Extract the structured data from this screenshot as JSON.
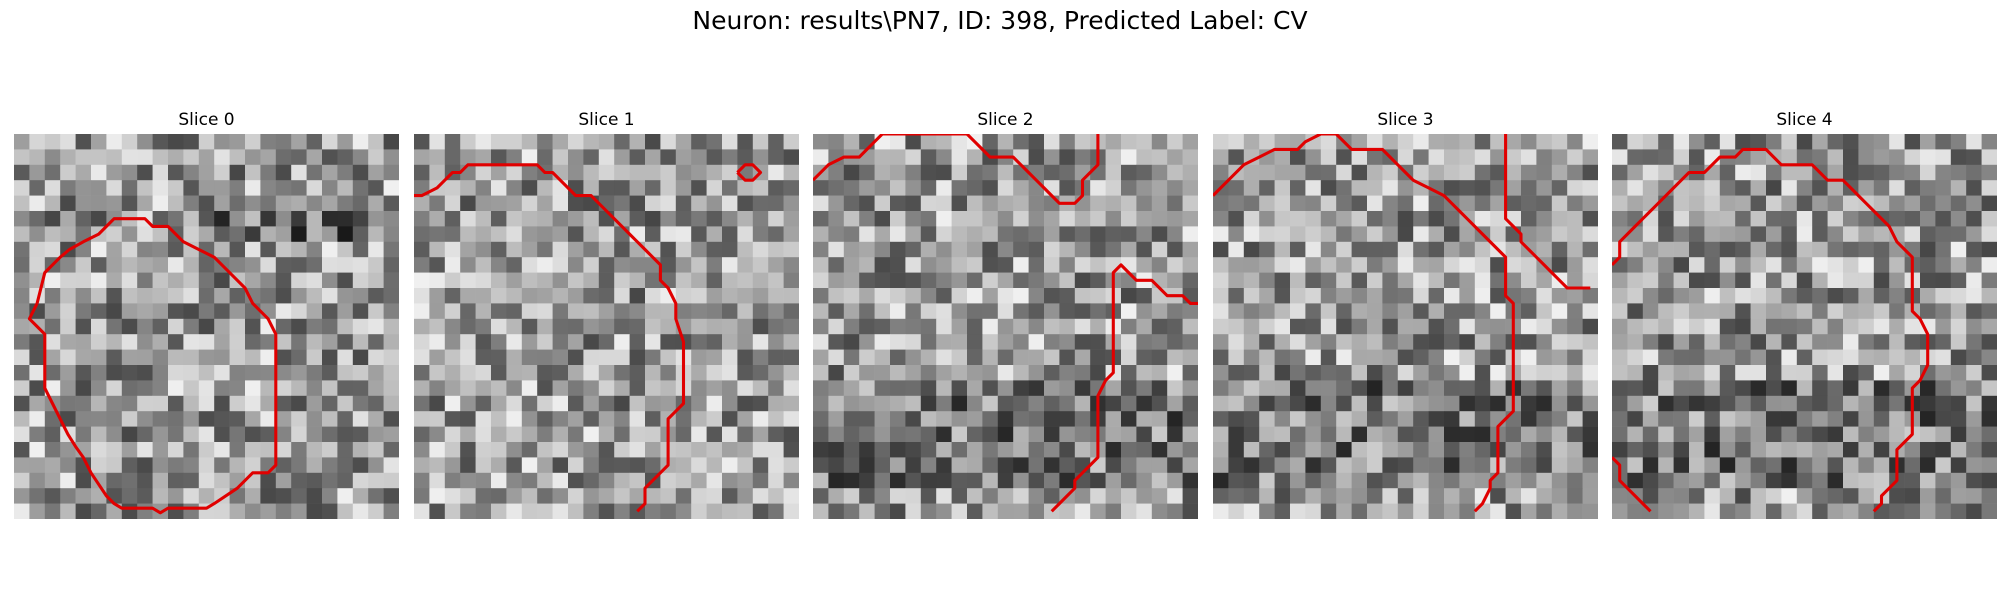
{
  "figure": {
    "title": "Neuron: results\\PN7, ID: 398, Predicted Label: CV"
  },
  "image_grid": {
    "rows": 25,
    "cols": 25,
    "colormap": "gray",
    "contour_color": "#e00000"
  },
  "slices": [
    {
      "title": "Slice 0",
      "contours": [
        [
          [
            1.5,
            11
          ],
          [
            2,
            9
          ],
          [
            3,
            8
          ],
          [
            3.6,
            7.5
          ],
          [
            4.5,
            7
          ],
          [
            5.5,
            6.5
          ],
          [
            6,
            6
          ],
          [
            6.5,
            5.5
          ],
          [
            7.5,
            5.5
          ],
          [
            8.5,
            5.5
          ],
          [
            9,
            6
          ],
          [
            10,
            6
          ],
          [
            10.5,
            6.5
          ],
          [
            11,
            7
          ],
          [
            12,
            7.5
          ],
          [
            13,
            8
          ],
          [
            14.5,
            9.5
          ],
          [
            15,
            10
          ],
          [
            15.5,
            11
          ],
          [
            16.5,
            12
          ],
          [
            17,
            13
          ],
          [
            17,
            15
          ],
          [
            17,
            17
          ],
          [
            17,
            20
          ],
          [
            17,
            21.5
          ],
          [
            16.5,
            22
          ],
          [
            15.5,
            22
          ],
          [
            14.5,
            23
          ],
          [
            13,
            24
          ],
          [
            12.5,
            24.3
          ],
          [
            11,
            24.3
          ],
          [
            10,
            24.3
          ],
          [
            9.5,
            24.6
          ],
          [
            9,
            24.3
          ],
          [
            8,
            24.3
          ],
          [
            7,
            24.3
          ],
          [
            6.5,
            24
          ],
          [
            6,
            23.5
          ],
          [
            5,
            22
          ],
          [
            4.5,
            21
          ],
          [
            4,
            20.3
          ],
          [
            3.5,
            19.5
          ],
          [
            3,
            18.5
          ],
          [
            2.5,
            17.5
          ],
          [
            2,
            16.5
          ],
          [
            2,
            15
          ],
          [
            2,
            13
          ],
          [
            1.5,
            12.5
          ],
          [
            1,
            12
          ],
          [
            1.5,
            11
          ]
        ]
      ]
    },
    {
      "title": "Slice 1",
      "contours": [
        [
          [
            -0.5,
            4
          ],
          [
            0.5,
            4
          ],
          [
            1.5,
            3.5
          ],
          [
            2,
            3
          ],
          [
            2.5,
            2.5
          ],
          [
            3,
            2.5
          ],
          [
            3.5,
            2
          ],
          [
            4,
            2
          ],
          [
            5,
            2
          ],
          [
            6.5,
            2
          ],
          [
            8,
            2
          ],
          [
            8.5,
            2.5
          ],
          [
            9,
            2.5
          ],
          [
            9.5,
            3
          ],
          [
            10,
            3.5
          ],
          [
            10.5,
            4
          ],
          [
            11.5,
            4
          ],
          [
            12,
            4.5
          ],
          [
            13,
            5.5
          ],
          [
            14,
            6.5
          ],
          [
            15,
            7.5
          ],
          [
            15.5,
            8
          ],
          [
            16,
            8.5
          ],
          [
            16,
            9.5
          ],
          [
            16.5,
            10
          ],
          [
            17,
            11
          ],
          [
            17,
            12
          ],
          [
            17.5,
            13.5
          ],
          [
            17.5,
            15
          ],
          [
            17.5,
            17
          ],
          [
            17.5,
            17.5
          ],
          [
            17,
            18
          ],
          [
            16.5,
            18.5
          ],
          [
            16.5,
            19.5
          ],
          [
            16.5,
            21
          ],
          [
            16.5,
            21.5
          ],
          [
            16,
            22
          ],
          [
            15.5,
            22.5
          ],
          [
            15,
            23
          ],
          [
            15,
            24
          ],
          [
            14.5,
            24.5
          ]
        ],
        [
          [
            21,
            2.5
          ],
          [
            21.5,
            2
          ],
          [
            22,
            2
          ],
          [
            22.5,
            2.5
          ],
          [
            22,
            3
          ],
          [
            21.5,
            3
          ],
          [
            21,
            2.5
          ]
        ]
      ]
    },
    {
      "title": "Slice 2",
      "contours": [
        [
          [
            0,
            3
          ],
          [
            1,
            2
          ],
          [
            2,
            1.5
          ],
          [
            3,
            1.5
          ],
          [
            3.5,
            1
          ],
          [
            4,
            0.5
          ],
          [
            4.5,
            0
          ],
          [
            5.5,
            0
          ],
          [
            7,
            0
          ],
          [
            9,
            0
          ],
          [
            10,
            0
          ],
          [
            10.5,
            0.5
          ],
          [
            11,
            1
          ],
          [
            11.5,
            1.5
          ],
          [
            13,
            1.5
          ],
          [
            13.5,
            2
          ],
          [
            14,
            2.5
          ],
          [
            14.5,
            3
          ],
          [
            15,
            3.5
          ],
          [
            15.5,
            4
          ],
          [
            16,
            4.5
          ],
          [
            17,
            4.5
          ],
          [
            17.5,
            4
          ],
          [
            17.5,
            3
          ],
          [
            18,
            2.5
          ],
          [
            18.5,
            2
          ],
          [
            18.5,
            0
          ]
        ],
        [
          [
            15.5,
            24.5
          ],
          [
            16,
            24
          ],
          [
            16.5,
            23.5
          ],
          [
            17,
            23
          ],
          [
            17,
            22.5
          ],
          [
            17.5,
            22
          ],
          [
            18,
            21.5
          ],
          [
            18.5,
            21
          ],
          [
            18.5,
            20
          ],
          [
            18.5,
            18.5
          ],
          [
            18.5,
            17
          ],
          [
            19,
            16
          ],
          [
            19.5,
            15.5
          ],
          [
            19.5,
            14
          ],
          [
            19.5,
            12
          ],
          [
            19.5,
            10
          ],
          [
            19.5,
            9
          ],
          [
            20,
            8.5
          ],
          [
            20.5,
            9
          ],
          [
            21,
            9.5
          ],
          [
            22,
            9.5
          ],
          [
            22.5,
            10
          ],
          [
            23,
            10.5
          ],
          [
            24,
            10.5
          ],
          [
            24.5,
            11
          ],
          [
            25,
            11
          ]
        ]
      ]
    },
    {
      "title": "Slice 3",
      "contours": [
        [
          [
            0,
            4
          ],
          [
            1,
            3
          ],
          [
            2,
            2
          ],
          [
            3,
            1.5
          ],
          [
            4,
            1
          ],
          [
            5.5,
            1
          ],
          [
            6,
            0.5
          ],
          [
            7,
            0
          ],
          [
            8,
            0
          ],
          [
            9,
            1
          ],
          [
            10,
            1
          ],
          [
            11,
            1
          ],
          [
            11.5,
            1.5
          ],
          [
            12,
            2
          ],
          [
            12.5,
            2.5
          ],
          [
            13,
            3
          ],
          [
            14,
            3.5
          ],
          [
            15,
            4
          ],
          [
            15.5,
            4.5
          ],
          [
            16,
            5
          ],
          [
            16.5,
            5.5
          ],
          [
            17.5,
            6.5
          ],
          [
            18.5,
            7.5
          ],
          [
            19,
            8
          ],
          [
            19,
            10.5
          ],
          [
            19.5,
            11
          ],
          [
            19.5,
            13
          ],
          [
            19.5,
            17
          ],
          [
            19.5,
            18
          ],
          [
            19,
            18.5
          ],
          [
            18.5,
            19
          ],
          [
            18.5,
            20.5
          ],
          [
            18.5,
            22
          ],
          [
            18,
            22.5
          ],
          [
            18,
            23
          ],
          [
            17.5,
            24
          ],
          [
            17,
            24.5
          ]
        ],
        [
          [
            19,
            0
          ],
          [
            19,
            2
          ],
          [
            19,
            4
          ],
          [
            19,
            5.5
          ],
          [
            19.5,
            6
          ],
          [
            20,
            6.5
          ],
          [
            20,
            7
          ],
          [
            20.5,
            7.5
          ],
          [
            21,
            8
          ],
          [
            21.5,
            8.5
          ],
          [
            22,
            9
          ],
          [
            22.5,
            9.5
          ],
          [
            23,
            10
          ],
          [
            24.5,
            10
          ]
        ]
      ]
    },
    {
      "title": "Slice 4",
      "contours": [
        [
          [
            0,
            8.5
          ],
          [
            0.5,
            8
          ],
          [
            0.5,
            7
          ],
          [
            1,
            6.5
          ],
          [
            1.5,
            6
          ],
          [
            2,
            5.5
          ],
          [
            2.5,
            5
          ],
          [
            3,
            4.5
          ],
          [
            3.5,
            4
          ],
          [
            4,
            3.5
          ],
          [
            4.5,
            3
          ],
          [
            5,
            2.5
          ],
          [
            6,
            2.5
          ],
          [
            6.5,
            2
          ],
          [
            7,
            1.5
          ],
          [
            8,
            1.5
          ],
          [
            8.5,
            1
          ],
          [
            9,
            1
          ],
          [
            10,
            1
          ],
          [
            10.5,
            1.5
          ],
          [
            11,
            2
          ],
          [
            12,
            2
          ],
          [
            13,
            2
          ],
          [
            13.5,
            2.5
          ],
          [
            14,
            3
          ],
          [
            15,
            3
          ],
          [
            15.5,
            3.5
          ],
          [
            16,
            4
          ],
          [
            16.5,
            4.5
          ],
          [
            17,
            5
          ],
          [
            17.5,
            5.5
          ],
          [
            18,
            6
          ],
          [
            18.5,
            7
          ],
          [
            19,
            7.5
          ],
          [
            19.5,
            8
          ],
          [
            19.5,
            9
          ],
          [
            19.5,
            10
          ],
          [
            19.5,
            11.5
          ],
          [
            20,
            12
          ],
          [
            20.5,
            13
          ],
          [
            20.5,
            15
          ],
          [
            20,
            16
          ],
          [
            19.5,
            16.5
          ],
          [
            19.5,
            18
          ],
          [
            19.5,
            19.5
          ],
          [
            19,
            20
          ],
          [
            18.5,
            20.5
          ],
          [
            18.5,
            21.5
          ],
          [
            18.5,
            22.5
          ],
          [
            18,
            23
          ],
          [
            17.5,
            23.5
          ],
          [
            17.5,
            24
          ],
          [
            17,
            24.5
          ]
        ],
        [
          [
            0,
            21
          ],
          [
            0.5,
            21.5
          ],
          [
            0.5,
            22.5
          ],
          [
            1,
            23
          ],
          [
            1.5,
            23.5
          ],
          [
            2,
            24
          ],
          [
            2.5,
            24.5
          ]
        ]
      ]
    }
  ]
}
